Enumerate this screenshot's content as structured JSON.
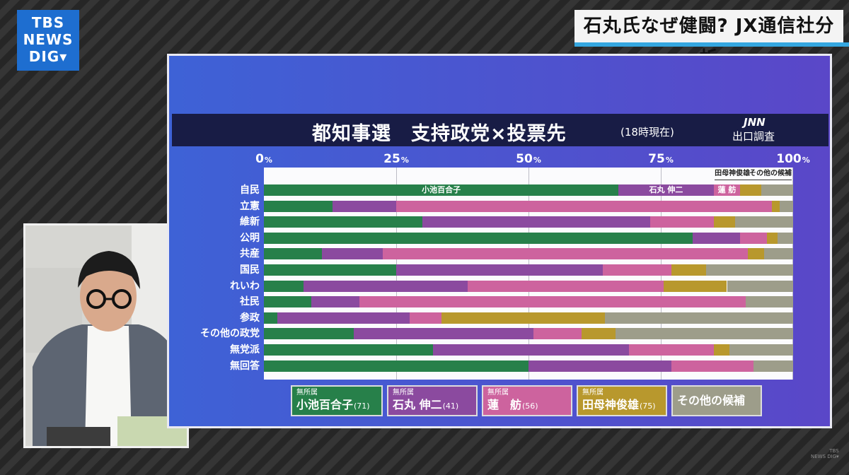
{
  "brand": {
    "logo_lines": [
      "TBS",
      "NEWS",
      "DIG▾"
    ],
    "watermark": [
      "TBS",
      "NEWS DIG▾"
    ]
  },
  "headline": "石丸氏なぜ健闘? JX通信社分析",
  "chart_data": {
    "type": "bar",
    "orientation": "horizontal",
    "stacked": true,
    "title": "都知事選　支持政党×投票先",
    "subtitle": "(18時現在)",
    "source": "JNN",
    "source_note": "出口調査",
    "xlim": [
      0,
      100
    ],
    "x_ticks": [
      {
        "value": 0,
        "label": "0",
        "unit": "%"
      },
      {
        "value": 25,
        "label": "25",
        "unit": "%"
      },
      {
        "value": 50,
        "label": "50",
        "unit": "%"
      },
      {
        "value": 75,
        "label": "75",
        "unit": "%"
      },
      {
        "value": 100,
        "label": "100",
        "unit": "%"
      }
    ],
    "categories": [
      "自民",
      "立憲",
      "維新",
      "公明",
      "共産",
      "国民",
      "れいわ",
      "社民",
      "参政",
      "その他の政党",
      "無党派",
      "無回答"
    ],
    "series": [
      {
        "party": "無所属",
        "name": "小池百合子",
        "age": "(71)",
        "color": "#27804a",
        "values": [
          67,
          13,
          30,
          81,
          11,
          25,
          7.5,
          9,
          2.5,
          17,
          32,
          50
        ]
      },
      {
        "party": "無所属",
        "name": "石丸 伸二",
        "age": "(41)",
        "color": "#8b4a9f",
        "values": [
          18,
          12,
          43,
          9,
          11.5,
          39,
          31,
          9,
          25,
          34,
          37,
          27
        ]
      },
      {
        "party": "無所属",
        "name": "蓮　舫",
        "age": "(56)",
        "color": "#cd639e",
        "values": [
          5,
          71,
          12,
          5,
          69,
          13,
          37,
          73,
          6,
          9,
          16,
          15.5
        ]
      },
      {
        "party": "無所属",
        "name": "田母神俊雄",
        "age": "(75)",
        "color": "#b8982d",
        "values": [
          4,
          1.5,
          4,
          2,
          3,
          6.5,
          12,
          0,
          31,
          6.5,
          3,
          0
        ]
      },
      {
        "party": "",
        "name": "その他の候補",
        "age": "",
        "color": "#9d9d8a",
        "values": [
          6,
          2.5,
          11,
          3,
          5.5,
          16.5,
          12.5,
          9,
          35.5,
          33.5,
          12,
          7.5
        ]
      }
    ],
    "bar_labels": [
      "小池百合子",
      "石丸 伸二",
      "蓮 舫"
    ],
    "callouts": [
      "田母神俊雄",
      "その他の候補"
    ],
    "grid": true,
    "legend_position": "bottom"
  }
}
